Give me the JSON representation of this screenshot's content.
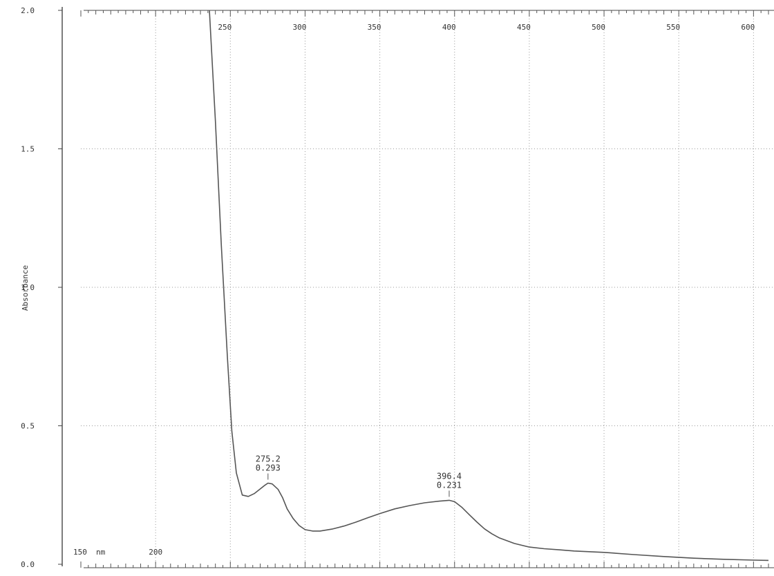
{
  "chart_data": {
    "type": "line",
    "title": "",
    "xlabel": "",
    "ylabel": "Absorbance",
    "xlim": [
      150,
      610
    ],
    "ylim": [
      0.0,
      2.0
    ],
    "x_unit_label": "nm",
    "x_ticks": [
      {
        "value": 150,
        "label": "150"
      },
      {
        "value": 200,
        "label": "200"
      },
      {
        "value": 250,
        "label": "250"
      },
      {
        "value": 300,
        "label": "300"
      },
      {
        "value": 350,
        "label": "350"
      },
      {
        "value": 400,
        "label": "400"
      },
      {
        "value": 450,
        "label": "450"
      },
      {
        "value": 500,
        "label": "500"
      },
      {
        "value": 550,
        "label": "550"
      },
      {
        "value": 600,
        "label": "600"
      }
    ],
    "y_ticks": [
      {
        "value": 0.0,
        "label": "0.0"
      },
      {
        "value": 0.5,
        "label": "0.5"
      },
      {
        "value": 1.0,
        "label": "1.0"
      },
      {
        "value": 1.5,
        "label": "1.5"
      },
      {
        "value": 2.0,
        "label": "2.0"
      }
    ],
    "grid": true,
    "series": [
      {
        "color": "#555555",
        "x": [
          236,
          240,
          244,
          248,
          251,
          254,
          258,
          262,
          266,
          270,
          273,
          275.2,
          278,
          282,
          285,
          288,
          292,
          296,
          300,
          305,
          310,
          318,
          326,
          334,
          342,
          350,
          360,
          370,
          380,
          390,
          396.4,
          400,
          405,
          410,
          415,
          420,
          425,
          430,
          440,
          450,
          460,
          470,
          480,
          500,
          520,
          540,
          560,
          580,
          600,
          610
        ],
        "y": [
          2.0,
          1.6,
          1.15,
          0.75,
          0.48,
          0.33,
          0.25,
          0.245,
          0.255,
          0.272,
          0.285,
          0.293,
          0.29,
          0.27,
          0.24,
          0.2,
          0.165,
          0.14,
          0.125,
          0.12,
          0.12,
          0.127,
          0.138,
          0.152,
          0.168,
          0.183,
          0.2,
          0.212,
          0.222,
          0.228,
          0.231,
          0.226,
          0.205,
          0.178,
          0.152,
          0.128,
          0.11,
          0.095,
          0.075,
          0.062,
          0.056,
          0.052,
          0.048,
          0.043,
          0.035,
          0.028,
          0.022,
          0.018,
          0.015,
          0.014
        ]
      }
    ],
    "annotations": [
      {
        "x": 275.2,
        "y": 0.293,
        "label_x": "275.2",
        "label_y": "0.293"
      },
      {
        "x": 396.4,
        "y": 0.231,
        "label_x": "396.4",
        "label_y": "0.231"
      }
    ]
  }
}
